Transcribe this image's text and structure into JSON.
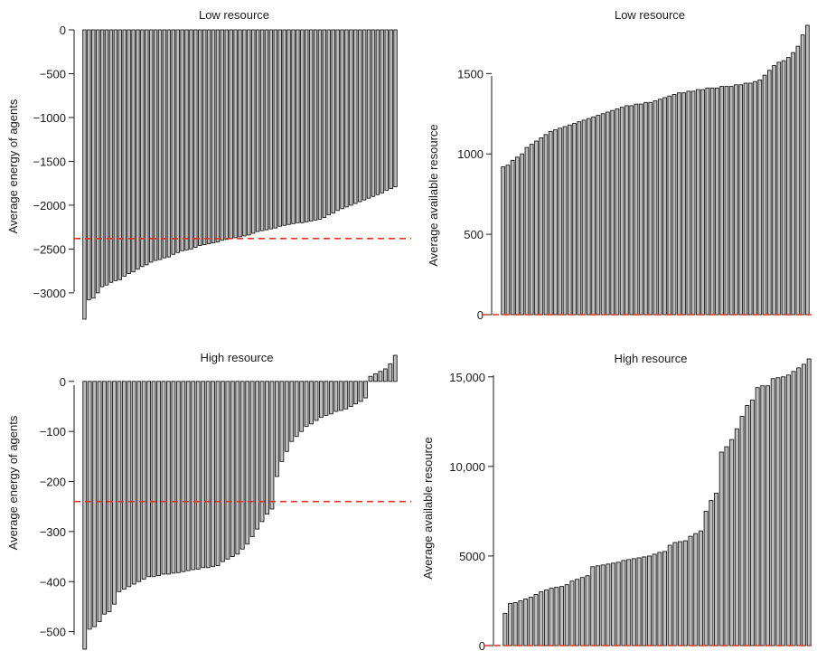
{
  "chart_data": [
    {
      "panel": "top-left",
      "type": "bar",
      "title": "Low resource",
      "xlabel": "",
      "ylabel": "Average energy of agents",
      "ylim": [
        -3300,
        0
      ],
      "yticks": [
        0,
        -500,
        -1000,
        -1500,
        -2000,
        -2500,
        -3000
      ],
      "ytick_labels": [
        "0",
        "−500",
        "−1000",
        "−1500",
        "−2000",
        "−2500",
        "−3000"
      ],
      "reference_line": -2380,
      "reference_line_color": "#e8321e",
      "bar_color": "#bebebe",
      "values": [
        -3300,
        -3080,
        -3060,
        -3000,
        -2930,
        -2910,
        -2880,
        -2860,
        -2850,
        -2810,
        -2780,
        -2760,
        -2730,
        -2700,
        -2680,
        -2650,
        -2630,
        -2620,
        -2600,
        -2590,
        -2560,
        -2540,
        -2520,
        -2510,
        -2500,
        -2480,
        -2460,
        -2450,
        -2440,
        -2430,
        -2420,
        -2400,
        -2390,
        -2380,
        -2370,
        -2360,
        -2350,
        -2340,
        -2320,
        -2300,
        -2290,
        -2280,
        -2270,
        -2260,
        -2240,
        -2230,
        -2220,
        -2210,
        -2200,
        -2200,
        -2190,
        -2180,
        -2170,
        -2160,
        -2140,
        -2110,
        -2090,
        -2060,
        -2040,
        -2020,
        -2000,
        -1980,
        -1960,
        -1940,
        -1920,
        -1900,
        -1880,
        -1860,
        -1830,
        -1810,
        -1790
      ]
    },
    {
      "panel": "top-right",
      "type": "bar",
      "title": "Low resource",
      "xlabel": "",
      "ylabel": "Average available resource",
      "ylim": [
        0,
        1800
      ],
      "yticks": [
        0,
        500,
        1000,
        1500
      ],
      "ytick_labels": [
        "0",
        "500",
        "1000",
        "1500"
      ],
      "reference_line": 0,
      "reference_line_color": "#e8321e",
      "bar_color": "#bebebe",
      "values": [
        920,
        930,
        960,
        980,
        1000,
        1040,
        1060,
        1080,
        1100,
        1120,
        1140,
        1150,
        1160,
        1170,
        1180,
        1190,
        1200,
        1210,
        1220,
        1230,
        1240,
        1250,
        1260,
        1270,
        1280,
        1290,
        1300,
        1300,
        1310,
        1310,
        1320,
        1320,
        1330,
        1340,
        1350,
        1360,
        1370,
        1380,
        1380,
        1390,
        1390,
        1400,
        1400,
        1410,
        1410,
        1410,
        1420,
        1420,
        1420,
        1430,
        1430,
        1440,
        1440,
        1450,
        1460,
        1490,
        1520,
        1550,
        1570,
        1580,
        1600,
        1630,
        1670,
        1740,
        1800
      ]
    },
    {
      "panel": "bottom-left",
      "type": "bar",
      "title": "High resource",
      "xlabel": "",
      "ylabel": "Average energy of agents",
      "ylim": [
        -535,
        52
      ],
      "yticks": [
        0,
        -100,
        -200,
        -300,
        -400,
        -500
      ],
      "ytick_labels": [
        "0",
        "−100",
        "−200",
        "−300",
        "−400",
        "−500"
      ],
      "reference_line": -240,
      "reference_line_color": "#e8321e",
      "bar_color": "#bebebe",
      "values": [
        -535,
        -495,
        -490,
        -480,
        -465,
        -460,
        -445,
        -420,
        -415,
        -410,
        -405,
        -400,
        -395,
        -390,
        -390,
        -388,
        -385,
        -385,
        -383,
        -382,
        -380,
        -378,
        -376,
        -375,
        -372,
        -372,
        -370,
        -368,
        -360,
        -355,
        -350,
        -345,
        -335,
        -325,
        -310,
        -295,
        -280,
        -265,
        -255,
        -190,
        -160,
        -140,
        -120,
        -110,
        -100,
        -90,
        -85,
        -78,
        -72,
        -68,
        -65,
        -60,
        -58,
        -55,
        -50,
        -45,
        -40,
        -33,
        10,
        15,
        20,
        25,
        35,
        52
      ]
    },
    {
      "panel": "bottom-right",
      "type": "bar",
      "title": "High resource",
      "xlabel": "",
      "ylabel": "Average available resource",
      "ylim": [
        0,
        16200
      ],
      "yticks": [
        0,
        5000,
        10000,
        15000
      ],
      "ytick_labels": [
        "0",
        "5000",
        "10,000",
        "15,000"
      ],
      "reference_line": 0,
      "reference_line_color": "#e8321e",
      "bar_color": "#bebebe",
      "values": [
        1800,
        2350,
        2400,
        2500,
        2600,
        2700,
        2850,
        3000,
        3100,
        3200,
        3250,
        3300,
        3400,
        3600,
        3700,
        3800,
        3900,
        4400,
        4450,
        4500,
        4550,
        4600,
        4650,
        4750,
        4800,
        4850,
        4900,
        4950,
        5000,
        5100,
        5200,
        5250,
        5600,
        5750,
        5800,
        5850,
        6100,
        6250,
        6400,
        7500,
        8100,
        8500,
        10800,
        11100,
        11500,
        12100,
        12800,
        13400,
        13700,
        14400,
        14500,
        14500,
        14900,
        14950,
        15000,
        15100,
        15300,
        15500,
        15700,
        16000
      ]
    }
  ]
}
